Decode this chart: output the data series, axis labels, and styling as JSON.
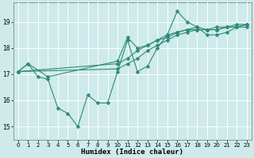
{
  "xlabel": "Humidex (Indice chaleur)",
  "background_color": "#ceeaea",
  "line_color": "#2d8b75",
  "grid_color": "#ffffff",
  "xlim": [
    -0.5,
    23.5
  ],
  "ylim": [
    14.5,
    19.75
  ],
  "yticks": [
    15,
    16,
    17,
    18,
    19
  ],
  "xticks": [
    0,
    1,
    2,
    3,
    4,
    5,
    6,
    7,
    8,
    9,
    10,
    11,
    12,
    13,
    14,
    15,
    16,
    17,
    18,
    19,
    20,
    21,
    22,
    23
  ],
  "series": [
    {
      "x": [
        0,
        1,
        2,
        3,
        4,
        5,
        6,
        7,
        8,
        9,
        10,
        11,
        12,
        13,
        14,
        15,
        16,
        17,
        18,
        19,
        20,
        21,
        22,
        23
      ],
      "y": [
        17.1,
        17.4,
        16.9,
        16.8,
        15.7,
        15.5,
        15.0,
        16.2,
        15.9,
        15.9,
        17.1,
        18.3,
        17.1,
        17.3,
        18.0,
        18.5,
        19.4,
        19.0,
        18.8,
        18.5,
        18.5,
        18.6,
        18.8,
        18.8
      ]
    },
    {
      "x": [
        0,
        1,
        3,
        10,
        11,
        12,
        13,
        14,
        15,
        16,
        17,
        18,
        19,
        20,
        21,
        22,
        23
      ],
      "y": [
        17.1,
        17.4,
        16.9,
        17.5,
        18.4,
        18.0,
        18.1,
        18.3,
        18.5,
        18.6,
        18.7,
        18.8,
        18.7,
        18.7,
        18.8,
        18.9,
        18.9
      ]
    },
    {
      "x": [
        0,
        10,
        11,
        12,
        13,
        14,
        15,
        16,
        17,
        18,
        19,
        20,
        21,
        22,
        23
      ],
      "y": [
        17.1,
        17.4,
        17.6,
        17.9,
        18.1,
        18.3,
        18.4,
        18.6,
        18.7,
        18.7,
        18.7,
        18.8,
        18.8,
        18.8,
        18.9
      ]
    },
    {
      "x": [
        0,
        10,
        11,
        12,
        13,
        14,
        15,
        16,
        17,
        18,
        19,
        20,
        21,
        22,
        23
      ],
      "y": [
        17.1,
        17.2,
        17.4,
        17.6,
        17.9,
        18.1,
        18.3,
        18.5,
        18.6,
        18.7,
        18.7,
        18.7,
        18.8,
        18.8,
        18.9
      ]
    }
  ]
}
